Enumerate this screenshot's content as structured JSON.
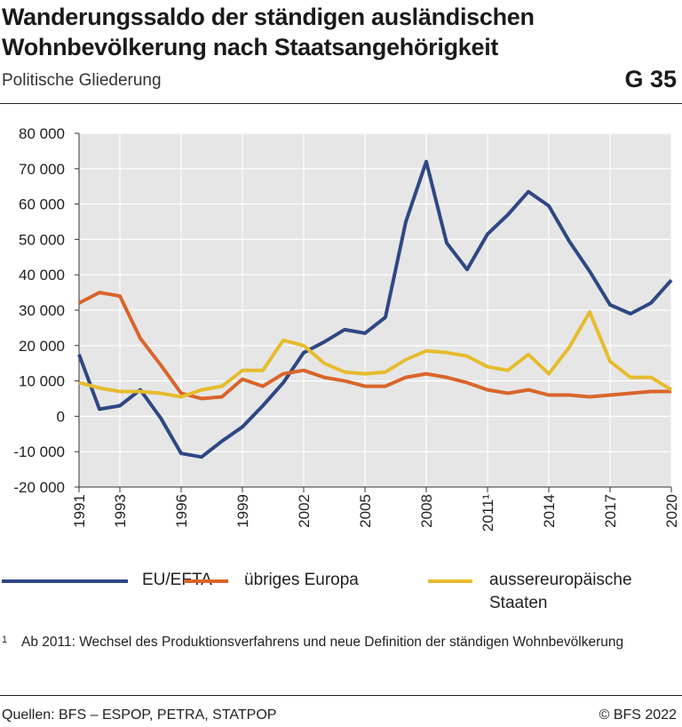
{
  "header": {
    "title_line1": "Wanderungssaldo der ständigen ausländischen",
    "title_line2": "Wohnbevölkerung nach Staatsangehörigkeit",
    "subtitle": "Politische Gliederung",
    "code": "G 35"
  },
  "chart_data": {
    "type": "line",
    "title": "Wanderungssaldo der ständigen ausländischen Wohnbevölkerung nach Staatsangehörigkeit",
    "subtitle": "Politische Gliederung",
    "x": [
      1991,
      1992,
      1993,
      1994,
      1995,
      1996,
      1997,
      1998,
      1999,
      2000,
      2001,
      2002,
      2003,
      2004,
      2005,
      2006,
      2007,
      2008,
      2009,
      2010,
      2011,
      2012,
      2013,
      2014,
      2015,
      2016,
      2017,
      2018,
      2019,
      2020
    ],
    "x_tick_labels": [
      "1991",
      "1993",
      "1996",
      "1999",
      "2002",
      "2005",
      "2008",
      "2011¹",
      "2014",
      "2017",
      "2020"
    ],
    "x_tick_years": [
      1991,
      1993,
      1996,
      1999,
      2002,
      2005,
      2008,
      2011,
      2014,
      2017,
      2020
    ],
    "xlim": [
      1991,
      2020
    ],
    "ylim": [
      -20000,
      80000
    ],
    "y_ticks": [
      80000,
      70000,
      60000,
      50000,
      40000,
      30000,
      20000,
      10000,
      0,
      -10000,
      -20000
    ],
    "y_tick_labels": [
      "80 000",
      "70 000",
      "60 000",
      "50 000",
      "40 000",
      "30 000",
      "20 000",
      "10 000",
      "0",
      "-10 000",
      "-20 000"
    ],
    "grid": true,
    "legend_position": "bottom",
    "series": [
      {
        "name": "EU/EFTA",
        "color": "#2f4884",
        "values": [
          17500,
          2000,
          3000,
          7500,
          -500,
          -10500,
          -11500,
          -7000,
          -3000,
          3000,
          9500,
          18000,
          21000,
          24500,
          23500,
          28000,
          55000,
          72000,
          49000,
          41500,
          51500,
          57000,
          63500,
          59500,
          49500,
          41000,
          31500,
          29000,
          32000,
          38500
        ]
      },
      {
        "name": "übriges Europa",
        "color": "#d9652b",
        "values": [
          32000,
          35000,
          34000,
          22000,
          14500,
          6500,
          5000,
          5500,
          10500,
          8500,
          12000,
          13000,
          11000,
          10000,
          8500,
          8500,
          11000,
          12000,
          11000,
          9500,
          7500,
          6500,
          7500,
          6000,
          6000,
          5500,
          6000,
          6500,
          7000,
          7000
        ]
      },
      {
        "name": "aussereuropäische Staaten",
        "color": "#e6bc2e",
        "values": [
          9500,
          8000,
          7000,
          7000,
          6500,
          5500,
          7500,
          8500,
          13000,
          13000,
          21500,
          20000,
          15000,
          12500,
          12000,
          12500,
          16000,
          18500,
          18000,
          17000,
          14000,
          13000,
          17500,
          12000,
          19500,
          29500,
          15500,
          11000,
          11000,
          7500
        ]
      }
    ]
  },
  "legend": {
    "items": [
      {
        "label": "EU/EFTA"
      },
      {
        "label": "übriges Europa"
      },
      {
        "label": "aussereuropäische Staaten",
        "label_line1": "aussereuropäische",
        "label_line2": "Staaten"
      }
    ]
  },
  "footnote": {
    "mark": "1",
    "text": "Ab 2011: Wechsel des Produktionsverfahrens und neue Definition der ständigen Wohnbevölkerung"
  },
  "footer": {
    "source": "Quellen: BFS – ESPOP, PETRA, STATPOP",
    "copyright": "© BFS 2022"
  }
}
